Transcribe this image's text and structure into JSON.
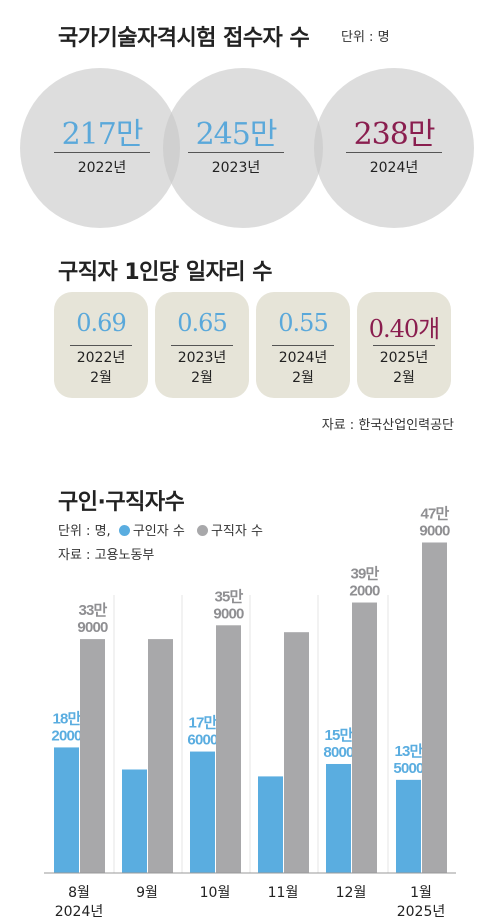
{
  "section1": {
    "title": "국가기술자격시험 접수자 수",
    "unit": "단위 : 명",
    "items": [
      {
        "value": "217만",
        "year": "2022년",
        "color": "#5aa8da"
      },
      {
        "value": "245만",
        "year": "2023년",
        "color": "#5aa8da"
      },
      {
        "value": "238만",
        "year": "2024년",
        "color": "#8a1e4f"
      }
    ]
  },
  "section2": {
    "title": "구직자 1인당 일자리 수",
    "items": [
      {
        "value": "0.69",
        "date_line1": "2022년",
        "date_line2": "2월",
        "color": "#5aa8da"
      },
      {
        "value": "0.65",
        "date_line1": "2023년",
        "date_line2": "2월",
        "color": "#5aa8da"
      },
      {
        "value": "0.55",
        "date_line1": "2024년",
        "date_line2": "2월",
        "color": "#5aa8da"
      },
      {
        "value": "0.40개",
        "date_line1": "2025년",
        "date_line2": "2월",
        "color": "#8a1e4f"
      }
    ],
    "source": "자료 : 한국산업인력공단"
  },
  "chart_data": {
    "type": "bar",
    "title": "구인·구직자수",
    "unit_prefix": "단위 : 명,",
    "source": "자료 : 고용노동부",
    "categories": [
      {
        "month": "8월",
        "year": "2024년"
      },
      {
        "month": "9월",
        "year": ""
      },
      {
        "month": "10월",
        "year": ""
      },
      {
        "month": "11월",
        "year": ""
      },
      {
        "month": "12월",
        "year": ""
      },
      {
        "month": "1월",
        "year": "2025년"
      }
    ],
    "series": [
      {
        "name": "구인자 수",
        "color": "#5aade0",
        "values": [
          182000,
          150000,
          176000,
          140000,
          158000,
          135000
        ],
        "labels": [
          [
            "18만",
            "2000"
          ],
          null,
          [
            "17만",
            "6000"
          ],
          null,
          [
            "15만",
            "8000"
          ],
          [
            "13만",
            "5000"
          ]
        ]
      },
      {
        "name": "구직자 수",
        "color": "#a8a8aa",
        "values": [
          339000,
          339000,
          359000,
          349000,
          392000,
          479000
        ],
        "labels": [
          [
            "33만",
            "9000"
          ],
          null,
          [
            "35만",
            "9000"
          ],
          null,
          [
            "39만",
            "2000"
          ],
          [
            "47만",
            "9000"
          ]
        ]
      }
    ],
    "ylim": [
      0,
      500000
    ],
    "label_colors": {
      "구인자 수": "#5aade0",
      "구직자 수": "#8f8f92"
    }
  }
}
